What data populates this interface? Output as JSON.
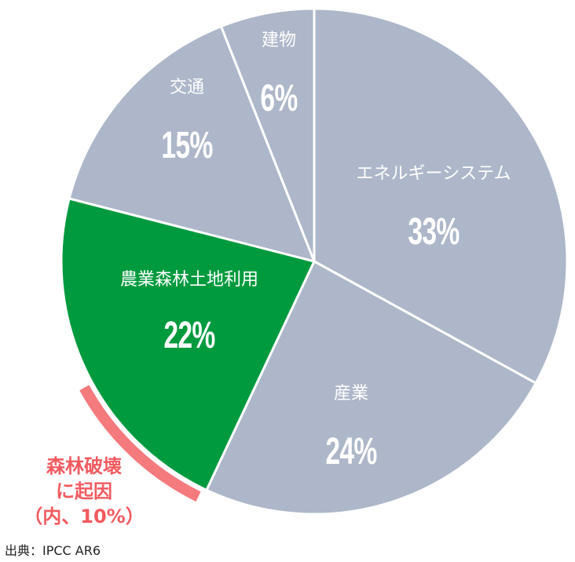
{
  "chart_data": {
    "type": "pie",
    "title": "",
    "categories": [
      "エネルギーシステム",
      "産業",
      "農業森林土地利用",
      "交通",
      "建物"
    ],
    "values": [
      33,
      24,
      22,
      15,
      6
    ],
    "unit": "%",
    "colors": [
      "#adb7c9",
      "#adb7c9",
      "#009a3e",
      "#adb7c9",
      "#adb7c9"
    ],
    "annotation": {
      "text": "森林破壊に起因（内、10%）",
      "value": 10,
      "parent": "農業森林土地利用",
      "color": "#f47a7e"
    },
    "source": "出典：IPCC AR6"
  },
  "labels": {
    "energy": {
      "name": "エネルギーシステム",
      "pct": "33%"
    },
    "industry": {
      "name": "産業",
      "pct": "24%"
    },
    "agri": {
      "name": "農業森林土地利用",
      "pct": "22%"
    },
    "transport": {
      "name": "交通",
      "pct": "15%"
    },
    "buildings": {
      "name": "建物",
      "pct": "6%"
    }
  },
  "note": {
    "line1": "森林破壊",
    "line2": "に起因",
    "line3": "（内、10%）"
  },
  "source": "出典：IPCC AR6"
}
